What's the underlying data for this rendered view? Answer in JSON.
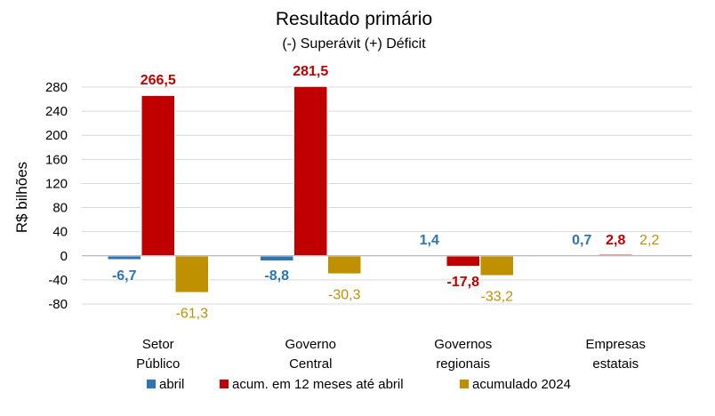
{
  "chart_data": {
    "type": "bar",
    "title": "Resultado primário",
    "subtitle": "(-) Superávit  (+) Déficit",
    "ylabel": "R$ bilhões",
    "xlabel": "",
    "ylim": [
      -80,
      280
    ],
    "yticks": [
      280,
      240,
      200,
      160,
      120,
      80,
      40,
      0,
      -40,
      -80
    ],
    "grid": true,
    "legend_position": "bottom",
    "categories": [
      [
        "Setor",
        "Público"
      ],
      [
        "Governo",
        "Central"
      ],
      [
        "Governos",
        "regionais"
      ],
      [
        "Empresas",
        "estatais"
      ]
    ],
    "series": [
      {
        "name": "abril",
        "color": "#2e75b6",
        "values": [
          -6.7,
          -8.8,
          1.4,
          0.7
        ],
        "labels": [
          "-6,7",
          "-8,8",
          "1,4",
          "0,7"
        ]
      },
      {
        "name": "acum. em 12 meses até abril",
        "color": "#c00000",
        "values": [
          266.5,
          281.5,
          -17.8,
          2.8
        ],
        "labels": [
          "266,5",
          "281,5",
          "-17,8",
          "2,8"
        ]
      },
      {
        "name": "acumulado 2024",
        "color": "#bf9000",
        "label_color": "#bf9000",
        "values": [
          -61.3,
          -30.3,
          -33.2,
          2.2
        ],
        "labels": [
          "-61,3",
          "-30,3",
          "-33,2",
          "2,2"
        ]
      }
    ]
  }
}
